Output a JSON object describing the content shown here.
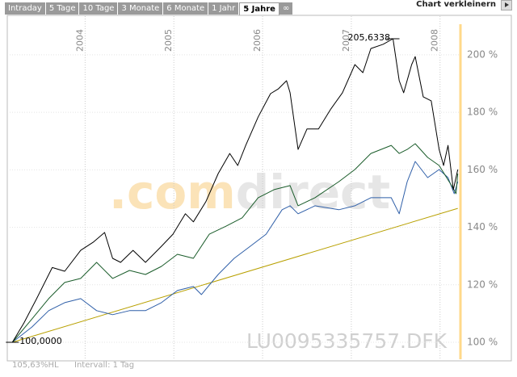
{
  "tabs": [
    {
      "label": "Intraday",
      "active": false
    },
    {
      "label": "5 Tage",
      "active": false
    },
    {
      "label": "10 Tage",
      "active": false
    },
    {
      "label": "3 Monate",
      "active": false
    },
    {
      "label": "6 Monate",
      "active": false
    },
    {
      "label": "1 Jahr",
      "active": false
    },
    {
      "label": "5 Jahre",
      "active": true
    },
    {
      "label": "∞",
      "active": false
    }
  ],
  "toolbar": {
    "shrink": "Chart verkleinern"
  },
  "chart_data": {
    "type": "line",
    "xlim": [
      2003.15,
      2008.23
    ],
    "xticks": [
      2004,
      2005,
      2006,
      2007,
      2008
    ],
    "ylim": [
      94.1,
      212.9
    ],
    "yticks": [
      {
        "value": 100,
        "label": "100 %"
      },
      {
        "value": 120,
        "label": "120 %"
      },
      {
        "value": 140,
        "label": "140 %"
      },
      {
        "value": 160,
        "label": "160 %"
      },
      {
        "value": 180,
        "label": "180 %"
      },
      {
        "value": 200,
        "label": "200 %"
      }
    ],
    "grid": true,
    "marker_color": "#ffd98a",
    "watermark": [
      ".com",
      "direct"
    ],
    "symbol": "LU0095335757.DFK",
    "footer": [
      "105,63%HL",
      "Intervall: 1 Tag"
    ],
    "annotations": [
      {
        "text": "205,6338",
        "x": 2007.47,
        "y": 205.6
      },
      {
        "text": "100,0000",
        "x": 2003.18,
        "y": 100
      }
    ],
    "series": [
      {
        "color": "#000000",
        "x": [
          2003.18,
          2003.31,
          2003.45,
          2003.63,
          2003.77,
          2003.95,
          2004.09,
          2004.22,
          2004.31,
          2004.4,
          2004.54,
          2004.68,
          2004.86,
          2004.99,
          2005.13,
          2005.22,
          2005.36,
          2005.5,
          2005.63,
          2005.72,
          2005.81,
          2005.95,
          2006.09,
          2006.18,
          2006.27,
          2006.31,
          2006.4,
          2006.5,
          2006.63,
          2006.77,
          2006.9,
          2007.04,
          2007.13,
          2007.22,
          2007.36,
          2007.47,
          2007.54,
          2007.59,
          2007.68,
          2007.72,
          2007.81,
          2007.9,
          2007.99,
          2008.04,
          2008.09,
          2008.15,
          2008.2
        ],
        "values": [
          100,
          106.7,
          115,
          126,
          124.7,
          132,
          134.8,
          138.2,
          129.2,
          127.8,
          132,
          127.8,
          133.4,
          137.6,
          144.7,
          141.9,
          148.9,
          158.7,
          165.7,
          161.5,
          168.5,
          178.4,
          186.5,
          188.2,
          191,
          186.8,
          167.1,
          174.2,
          174.2,
          181.2,
          186.8,
          196.6,
          193.8,
          202.2,
          203.7,
          205.6,
          191,
          186.8,
          196.6,
          199.4,
          185.4,
          184,
          167.1,
          161.5,
          168.5,
          153.1,
          160.1
        ]
      },
      {
        "color": "#1a5c2a",
        "x": [
          2003.18,
          2003.4,
          2003.59,
          2003.77,
          2003.95,
          2004.13,
          2004.31,
          2004.5,
          2004.68,
          2004.86,
          2005.04,
          2005.22,
          2005.4,
          2005.59,
          2005.77,
          2005.95,
          2006.13,
          2006.31,
          2006.4,
          2006.59,
          2006.86,
          2007.04,
          2007.22,
          2007.45,
          2007.54,
          2007.63,
          2007.72,
          2007.86,
          2007.99,
          2008.13,
          2008.18,
          2008.2
        ],
        "values": [
          100,
          108.1,
          115.2,
          120.8,
          122.2,
          127.8,
          122.2,
          125,
          123.6,
          126.4,
          130.6,
          129.2,
          137.6,
          140.4,
          143.3,
          150.3,
          153.1,
          154.5,
          147.5,
          150.3,
          155.9,
          160.1,
          165.7,
          168.5,
          165.7,
          167.1,
          169.1,
          164.3,
          161.5,
          154.5,
          151.7,
          158.7
        ]
      },
      {
        "color": "#2f5fa8",
        "x": [
          2003.18,
          2003.4,
          2003.59,
          2003.77,
          2003.95,
          2004.13,
          2004.31,
          2004.5,
          2004.68,
          2004.86,
          2005.04,
          2005.22,
          2005.31,
          2005.5,
          2005.68,
          2005.86,
          2006.04,
          2006.22,
          2006.31,
          2006.4,
          2006.59,
          2006.86,
          2007.04,
          2007.22,
          2007.45,
          2007.54,
          2007.63,
          2007.72,
          2007.86,
          2007.99,
          2008.09,
          2008.16,
          2008.2
        ],
        "values": [
          100,
          105.3,
          111,
          113.8,
          115.2,
          111,
          109.6,
          111,
          111,
          113.8,
          118,
          119.4,
          116.6,
          123.6,
          129.2,
          133.4,
          137.6,
          146.1,
          147.5,
          144.7,
          147.5,
          146.1,
          147.5,
          150.3,
          150.3,
          144.7,
          155.9,
          162.9,
          157.3,
          160.1,
          157.3,
          151.7,
          155.9
        ]
      },
      {
        "color": "#b8a000",
        "x": [
          2003.18,
          2008.2
        ],
        "values": [
          100,
          146.6
        ]
      }
    ]
  }
}
